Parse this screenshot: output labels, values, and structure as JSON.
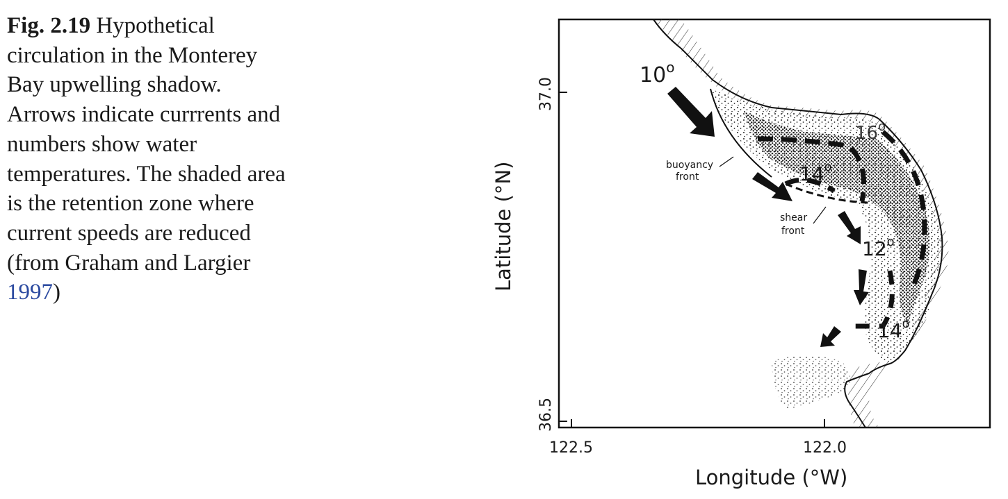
{
  "caption": {
    "label": "Fig. 2.19",
    "lines": [
      "Hypothetical",
      "circulation in the Monterey",
      "Bay upwelling shadow.",
      "Arrows indicate currrents and",
      "numbers show water",
      "temperatures. The shaded area",
      "is the retention zone where",
      "current speeds are reduced",
      "(from Graham and Largier"
    ],
    "reference_year": "1997",
    "closing": ")"
  },
  "figure": {
    "x_axis": {
      "label": "Longitude (°W)",
      "ticks": [
        "122.5",
        "122.0"
      ]
    },
    "y_axis": {
      "label": "Latitude (°N)",
      "ticks": [
        "37.0",
        "36.5"
      ]
    },
    "temperatures": [
      {
        "value": "10",
        "unit": "o"
      },
      {
        "value": "16",
        "unit": "o"
      },
      {
        "value": "14",
        "unit": "o"
      },
      {
        "value": "12",
        "unit": "o"
      },
      {
        "value": "14",
        "unit": "o"
      }
    ],
    "annotations": {
      "buoyancy_front": [
        "buoyancy",
        "front"
      ],
      "shear_front": [
        "shear",
        "front"
      ]
    },
    "colors": {
      "ink": "#1a1a1a",
      "reference_link": "#2b4aa0"
    }
  }
}
